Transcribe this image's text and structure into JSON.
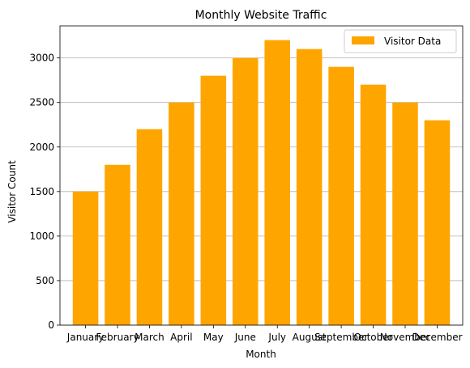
{
  "chart_data": {
    "type": "bar",
    "title": "Monthly Website Traffic",
    "xlabel": "Month",
    "ylabel": "Visitor Count",
    "categories": [
      "January",
      "February",
      "March",
      "April",
      "May",
      "June",
      "July",
      "August",
      "September",
      "October",
      "November",
      "December"
    ],
    "series": [
      {
        "name": "Visitor Data",
        "values": [
          1500,
          1800,
          2200,
          2500,
          2800,
          3000,
          3200,
          3100,
          2900,
          2700,
          2500,
          2300
        ]
      }
    ],
    "ylim": [
      0,
      3360
    ],
    "yticks": [
      0,
      500,
      1000,
      1500,
      2000,
      2500,
      3000
    ],
    "grid": "y",
    "legend_position": "top-right",
    "colors": {
      "bar": "#FFA500",
      "grid": "#b0b0b0",
      "axis": "#000000"
    }
  }
}
